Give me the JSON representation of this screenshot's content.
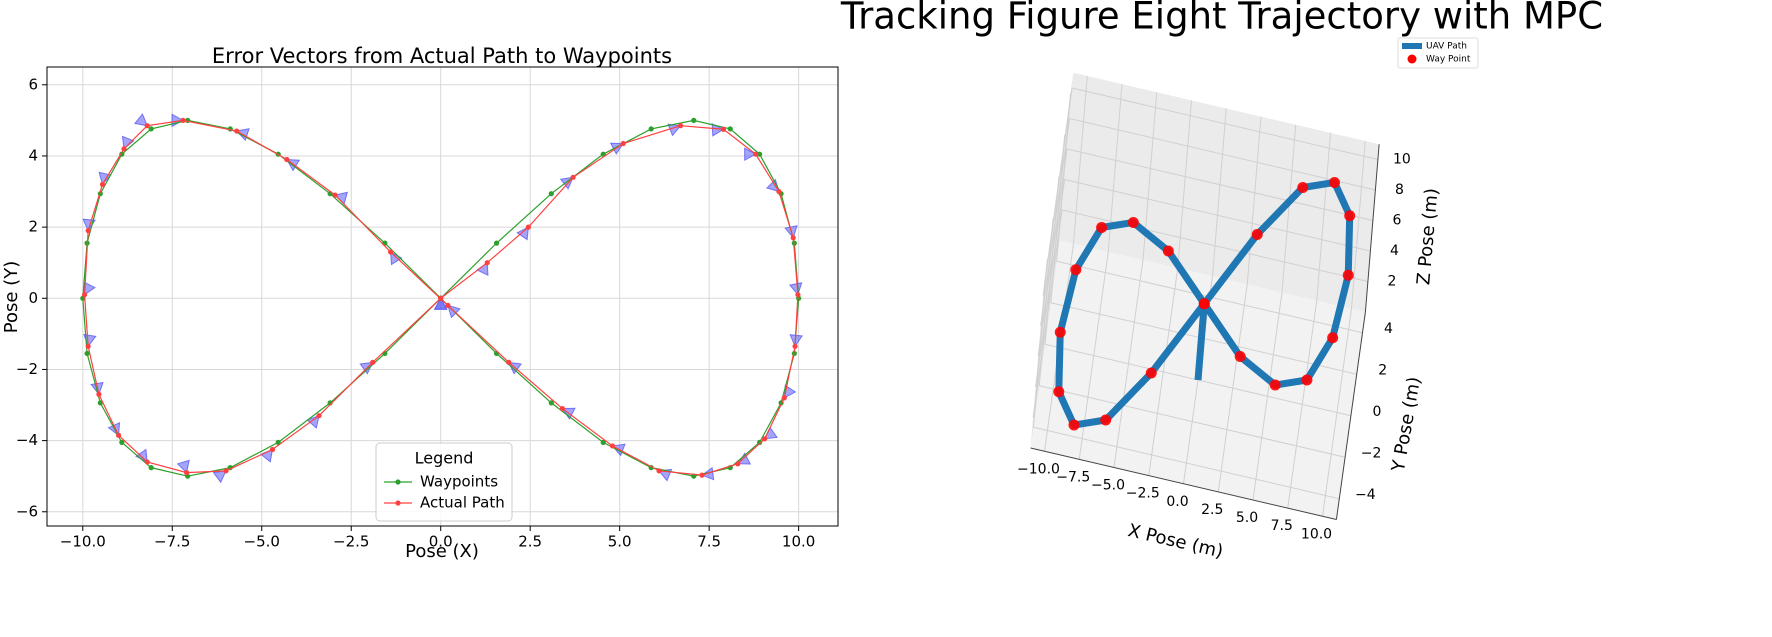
{
  "chart_data": [
    {
      "type": "line",
      "title": "Error Vectors from Actual Path to Waypoints",
      "x_label": "Pose (X)",
      "y_label": "Pose (Y)",
      "xlim": [
        -11,
        11.1
      ],
      "ylim": [
        -6.4,
        6.5
      ],
      "xticks": [
        {
          "value": -10,
          "label": "−10.0"
        },
        {
          "value": -7.5,
          "label": "−7.5"
        },
        {
          "value": -5,
          "label": "−5.0"
        },
        {
          "value": -2.5,
          "label": "−2.5"
        },
        {
          "value": 0,
          "label": "0.0"
        },
        {
          "value": 2.5,
          "label": "2.5"
        },
        {
          "value": 5,
          "label": "5.0"
        },
        {
          "value": 7.5,
          "label": "7.5"
        },
        {
          "value": 10,
          "label": "10.0"
        }
      ],
      "yticks": [
        {
          "value": -6,
          "label": "−6"
        },
        {
          "value": -4,
          "label": "−4"
        },
        {
          "value": -2,
          "label": "−2"
        },
        0,
        2,
        4,
        6
      ],
      "grid": true,
      "legend": {
        "title": "Legend",
        "position": "lower center"
      },
      "error_vector_color": "#5a5af5",
      "series": [
        {
          "name": "Waypoints",
          "color": "#2ca02c",
          "x": [
            0,
            1.56,
            3.09,
            4.54,
            5.88,
            7.07,
            8.09,
            8.91,
            9.51,
            9.88,
            10,
            9.88,
            9.51,
            8.91,
            8.09,
            7.07,
            5.88,
            4.54,
            3.09,
            1.56,
            0,
            -1.56,
            -3.09,
            -4.54,
            -5.88,
            -7.07,
            -8.09,
            -8.91,
            -9.51,
            -9.88,
            -10,
            -9.88,
            -9.51,
            -8.91,
            -8.09,
            -7.07,
            -5.88,
            -4.54,
            -3.09,
            -1.56,
            0
          ],
          "y": [
            0,
            1.55,
            2.94,
            4.05,
            4.76,
            5,
            4.76,
            4.05,
            2.94,
            1.55,
            0,
            -1.55,
            -2.94,
            -4.05,
            -4.76,
            -5,
            -4.76,
            -4.05,
            -2.94,
            -1.55,
            0,
            1.55,
            2.94,
            4.05,
            4.76,
            5,
            4.76,
            4.05,
            2.94,
            1.55,
            0,
            -1.55,
            -2.94,
            -4.05,
            -4.76,
            -5,
            -4.76,
            -4.05,
            -2.94,
            -1.55,
            0
          ]
        },
        {
          "name": "Actual Path",
          "color": "#ff4040",
          "x": [
            0,
            1.3,
            2.45,
            3.7,
            5.1,
            6.7,
            7.9,
            8.8,
            9.45,
            9.85,
            9.98,
            9.9,
            9.6,
            9.05,
            8.3,
            7.3,
            6.1,
            4.8,
            3.4,
            1.9,
            0.2,
            -1.4,
            -2.95,
            -4.3,
            -5.7,
            -7.2,
            -8.2,
            -8.85,
            -9.45,
            -9.85,
            -9.95,
            -9.85,
            -9.55,
            -9,
            -8.2,
            -7.1,
            -6,
            -4.7,
            -3.4,
            -1.9,
            0
          ],
          "y": [
            0,
            1,
            2,
            3.4,
            4.35,
            4.85,
            4.75,
            4.05,
            3,
            1.7,
            0.1,
            -1.35,
            -2.8,
            -3.95,
            -4.65,
            -4.97,
            -4.85,
            -4.15,
            -3.1,
            -1.8,
            -0.2,
            1.3,
            2.9,
            3.9,
            4.7,
            5,
            4.85,
            4.2,
            3.2,
            1.9,
            0.1,
            -1.35,
            -2.7,
            -3.85,
            -4.6,
            -4.9,
            -4.85,
            -4.25,
            -3.3,
            -1.8,
            0
          ]
        }
      ]
    },
    {
      "type": "line3d",
      "title": "Tracking Figure Eight Trajectory with MPC",
      "x_label": "X Pose (m)",
      "y_label": "Y Pose (m)",
      "z_label": "Z Pose (m)",
      "xlim": [
        -11,
        11
      ],
      "ylim": [
        -5,
        5
      ],
      "zlim": [
        0,
        11
      ],
      "xticks": [
        {
          "value": -10,
          "label": "−10.0"
        },
        {
          "value": -7.5,
          "label": "−7.5"
        },
        {
          "value": -5,
          "label": "−5.0"
        },
        {
          "value": -2.5,
          "label": "−2.5"
        },
        {
          "value": 0,
          "label": "0.0"
        },
        {
          "value": 2.5,
          "label": "2.5"
        },
        {
          "value": 5,
          "label": "5.0"
        },
        {
          "value": 7.5,
          "label": "7.5"
        },
        {
          "value": 10,
          "label": "10.0"
        }
      ],
      "yticks": [
        {
          "value": -4,
          "label": "−4"
        },
        {
          "value": -2,
          "label": "−2"
        },
        0,
        2,
        4
      ],
      "zticks": [
        2,
        4,
        6,
        8,
        10
      ],
      "legend": {
        "position": "upper right"
      },
      "series": [
        {
          "name": "UAV Path",
          "color": "#1f77b4",
          "x": [
            0,
            0,
            0,
            3.09,
            5.88,
            8.09,
            9.51,
            10,
            9.51,
            8.09,
            5.88,
            3.09,
            0,
            -3.09,
            -5.88,
            -8.09,
            -9.51,
            -10,
            -9.51,
            -8.09,
            -5.88,
            -3.09,
            0
          ],
          "y": [
            0,
            0,
            0,
            2.94,
            4.76,
            4.76,
            2.94,
            0,
            -2.94,
            -4.76,
            -4.76,
            -2.94,
            0,
            2.94,
            4.76,
            4.76,
            2.94,
            0,
            -2.94,
            -4.76,
            -4.76,
            -2.94,
            0
          ],
          "z": [
            0,
            2.5,
            5,
            6.2,
            7.4,
            8.2,
            8.8,
            9,
            8.8,
            8.2,
            7.4,
            6.2,
            5,
            3.8,
            2.6,
            1.8,
            1.2,
            1,
            1.2,
            1.8,
            2.6,
            3.8,
            5
          ]
        },
        {
          "name": "Way Point",
          "color": "#ff0000",
          "x": [
            0,
            3.09,
            5.88,
            8.09,
            9.51,
            10,
            9.51,
            8.09,
            5.88,
            3.09,
            0,
            -3.09,
            -5.88,
            -8.09,
            -9.51,
            -10,
            -9.51,
            -8.09,
            -5.88,
            -3.09
          ],
          "y": [
            0,
            2.94,
            4.76,
            4.76,
            2.94,
            0,
            -2.94,
            -4.76,
            -4.76,
            -2.94,
            0,
            2.94,
            4.76,
            4.76,
            2.94,
            0,
            -2.94,
            -4.76,
            -4.76,
            -2.94
          ],
          "z": [
            5,
            6.2,
            7.4,
            8.2,
            8.8,
            9,
            8.8,
            8.2,
            7.4,
            6.2,
            5,
            3.8,
            2.6,
            1.8,
            1.2,
            1,
            1.2,
            1.8,
            2.6,
            3.8
          ]
        }
      ]
    }
  ]
}
